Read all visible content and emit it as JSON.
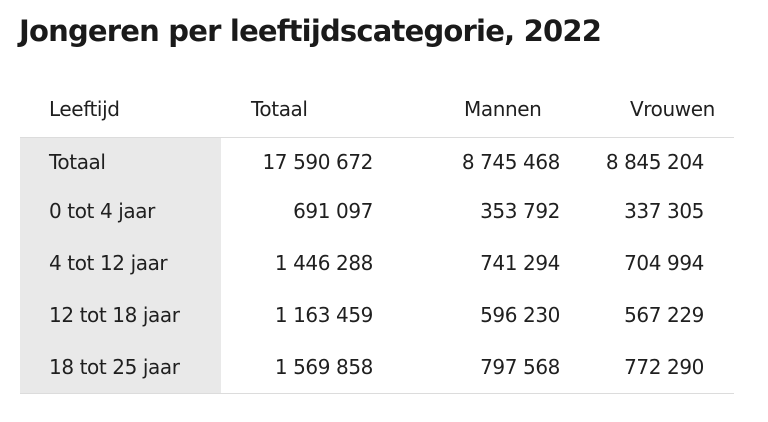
{
  "title": "Jongeren per leeftijdscategorie, 2022",
  "table": {
    "headers": [
      "Leeftijd",
      "Totaal",
      "Mannen",
      "Vrouwen"
    ],
    "rows": [
      [
        "Totaal",
        "17 590 672",
        "8 745 468",
        "8 845 204"
      ],
      [
        "0 tot 4 jaar",
        "691 097",
        "353 792",
        "337 305"
      ],
      [
        "4 tot 12 jaar",
        "1 446 288",
        "741 294",
        "704 994"
      ],
      [
        "12 tot 18 jaar",
        "1 163 459",
        "596 230",
        "567 229"
      ],
      [
        "18 tot 25 jaar",
        "1 569 858",
        "797 568",
        "772 290"
      ]
    ]
  },
  "colors": {
    "label_column_background": "#e9e9e9",
    "rule": "#dcdcdc",
    "text": "#1f1f1f"
  }
}
